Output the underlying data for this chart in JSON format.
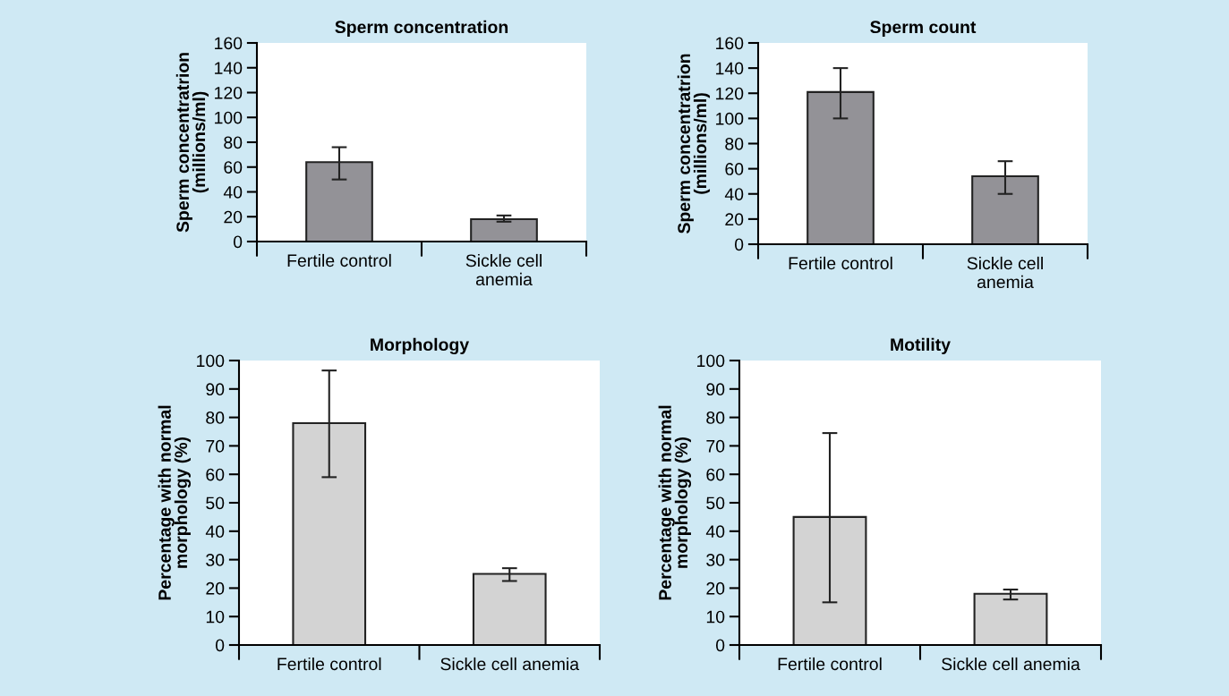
{
  "chart_data": [
    {
      "type": "bar",
      "title": "Sperm concentration",
      "ylabel": "Sperm concentratrion\n(millions/ml)",
      "categories": [
        "Fertile control",
        "Sickle cell\nanemia"
      ],
      "values": [
        64,
        18
      ],
      "errors": [
        [
          50,
          76
        ],
        [
          16,
          21
        ]
      ],
      "color": "#939297",
      "ylim": [
        0,
        160
      ],
      "yticks": [
        0,
        20,
        40,
        60,
        80,
        100,
        120,
        140,
        160
      ],
      "grid": false,
      "legend": false
    },
    {
      "type": "bar",
      "title": "Sperm count",
      "ylabel": "Sperm concentratrion\n(millions/ml)",
      "categories": [
        "Fertile control",
        "Sickle cell\nanemia"
      ],
      "values": [
        121,
        54
      ],
      "errors": [
        [
          100,
          140
        ],
        [
          40,
          66
        ]
      ],
      "color": "#939297",
      "ylim": [
        0,
        160
      ],
      "yticks": [
        0,
        20,
        40,
        60,
        80,
        100,
        120,
        140,
        160
      ],
      "grid": false,
      "legend": false
    },
    {
      "type": "bar",
      "title": "Morphology",
      "ylabel": "Percentage with normal\nmorphology (%)",
      "categories": [
        "Fertile control",
        "Sickle cell anemia"
      ],
      "values": [
        78,
        25
      ],
      "errors": [
        [
          59,
          96.5
        ],
        [
          22.5,
          27
        ]
      ],
      "color": "#d3d3d3",
      "ylim": [
        0,
        100
      ],
      "yticks": [
        0,
        10,
        20,
        30,
        40,
        50,
        60,
        70,
        80,
        90,
        100
      ],
      "grid": false,
      "legend": false
    },
    {
      "type": "bar",
      "title": "Motility",
      "ylabel": "Percentage with normal\nmorphology (%)",
      "categories": [
        "Fertile control",
        "Sickle cell anemia"
      ],
      "values": [
        45,
        18
      ],
      "errors": [
        [
          15,
          74.5
        ],
        [
          16,
          19.5
        ]
      ],
      "color": "#d3d3d3",
      "ylim": [
        0,
        100
      ],
      "yticks": [
        0,
        10,
        20,
        30,
        40,
        50,
        60,
        70,
        80,
        90,
        100
      ],
      "grid": false,
      "legend": false
    }
  ]
}
